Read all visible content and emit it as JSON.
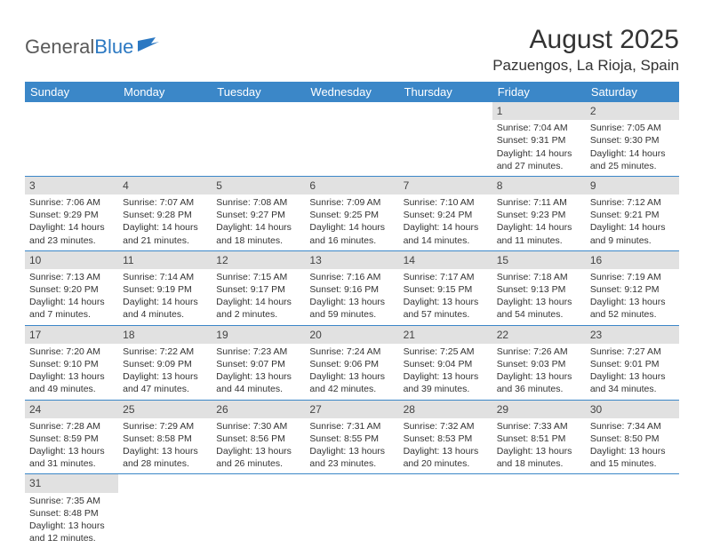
{
  "logo": {
    "text1": "General",
    "text2": "Blue",
    "flag_color": "#2b78c2"
  },
  "title": "August 2025",
  "location": "Pazuengos, La Rioja, Spain",
  "colors": {
    "header_bg": "#3b87c8",
    "header_fg": "#ffffff",
    "daynum_bg": "#e1e1e1",
    "rule": "#3b87c8",
    "text": "#333333"
  },
  "weekdays": [
    "Sunday",
    "Monday",
    "Tuesday",
    "Wednesday",
    "Thursday",
    "Friday",
    "Saturday"
  ],
  "weeks": [
    [
      null,
      null,
      null,
      null,
      null,
      {
        "d": "1",
        "sr": "7:04 AM",
        "ss": "9:31 PM",
        "dl": "14 hours and 27 minutes."
      },
      {
        "d": "2",
        "sr": "7:05 AM",
        "ss": "9:30 PM",
        "dl": "14 hours and 25 minutes."
      }
    ],
    [
      {
        "d": "3",
        "sr": "7:06 AM",
        "ss": "9:29 PM",
        "dl": "14 hours and 23 minutes."
      },
      {
        "d": "4",
        "sr": "7:07 AM",
        "ss": "9:28 PM",
        "dl": "14 hours and 21 minutes."
      },
      {
        "d": "5",
        "sr": "7:08 AM",
        "ss": "9:27 PM",
        "dl": "14 hours and 18 minutes."
      },
      {
        "d": "6",
        "sr": "7:09 AM",
        "ss": "9:25 PM",
        "dl": "14 hours and 16 minutes."
      },
      {
        "d": "7",
        "sr": "7:10 AM",
        "ss": "9:24 PM",
        "dl": "14 hours and 14 minutes."
      },
      {
        "d": "8",
        "sr": "7:11 AM",
        "ss": "9:23 PM",
        "dl": "14 hours and 11 minutes."
      },
      {
        "d": "9",
        "sr": "7:12 AM",
        "ss": "9:21 PM",
        "dl": "14 hours and 9 minutes."
      }
    ],
    [
      {
        "d": "10",
        "sr": "7:13 AM",
        "ss": "9:20 PM",
        "dl": "14 hours and 7 minutes."
      },
      {
        "d": "11",
        "sr": "7:14 AM",
        "ss": "9:19 PM",
        "dl": "14 hours and 4 minutes."
      },
      {
        "d": "12",
        "sr": "7:15 AM",
        "ss": "9:17 PM",
        "dl": "14 hours and 2 minutes."
      },
      {
        "d": "13",
        "sr": "7:16 AM",
        "ss": "9:16 PM",
        "dl": "13 hours and 59 minutes."
      },
      {
        "d": "14",
        "sr": "7:17 AM",
        "ss": "9:15 PM",
        "dl": "13 hours and 57 minutes."
      },
      {
        "d": "15",
        "sr": "7:18 AM",
        "ss": "9:13 PM",
        "dl": "13 hours and 54 minutes."
      },
      {
        "d": "16",
        "sr": "7:19 AM",
        "ss": "9:12 PM",
        "dl": "13 hours and 52 minutes."
      }
    ],
    [
      {
        "d": "17",
        "sr": "7:20 AM",
        "ss": "9:10 PM",
        "dl": "13 hours and 49 minutes."
      },
      {
        "d": "18",
        "sr": "7:22 AM",
        "ss": "9:09 PM",
        "dl": "13 hours and 47 minutes."
      },
      {
        "d": "19",
        "sr": "7:23 AM",
        "ss": "9:07 PM",
        "dl": "13 hours and 44 minutes."
      },
      {
        "d": "20",
        "sr": "7:24 AM",
        "ss": "9:06 PM",
        "dl": "13 hours and 42 minutes."
      },
      {
        "d": "21",
        "sr": "7:25 AM",
        "ss": "9:04 PM",
        "dl": "13 hours and 39 minutes."
      },
      {
        "d": "22",
        "sr": "7:26 AM",
        "ss": "9:03 PM",
        "dl": "13 hours and 36 minutes."
      },
      {
        "d": "23",
        "sr": "7:27 AM",
        "ss": "9:01 PM",
        "dl": "13 hours and 34 minutes."
      }
    ],
    [
      {
        "d": "24",
        "sr": "7:28 AM",
        "ss": "8:59 PM",
        "dl": "13 hours and 31 minutes."
      },
      {
        "d": "25",
        "sr": "7:29 AM",
        "ss": "8:58 PM",
        "dl": "13 hours and 28 minutes."
      },
      {
        "d": "26",
        "sr": "7:30 AM",
        "ss": "8:56 PM",
        "dl": "13 hours and 26 minutes."
      },
      {
        "d": "27",
        "sr": "7:31 AM",
        "ss": "8:55 PM",
        "dl": "13 hours and 23 minutes."
      },
      {
        "d": "28",
        "sr": "7:32 AM",
        "ss": "8:53 PM",
        "dl": "13 hours and 20 minutes."
      },
      {
        "d": "29",
        "sr": "7:33 AM",
        "ss": "8:51 PM",
        "dl": "13 hours and 18 minutes."
      },
      {
        "d": "30",
        "sr": "7:34 AM",
        "ss": "8:50 PM",
        "dl": "13 hours and 15 minutes."
      }
    ],
    [
      {
        "d": "31",
        "sr": "7:35 AM",
        "ss": "8:48 PM",
        "dl": "13 hours and 12 minutes."
      },
      null,
      null,
      null,
      null,
      null,
      null
    ]
  ],
  "labels": {
    "sunrise": "Sunrise:",
    "sunset": "Sunset:",
    "daylight": "Daylight:"
  }
}
